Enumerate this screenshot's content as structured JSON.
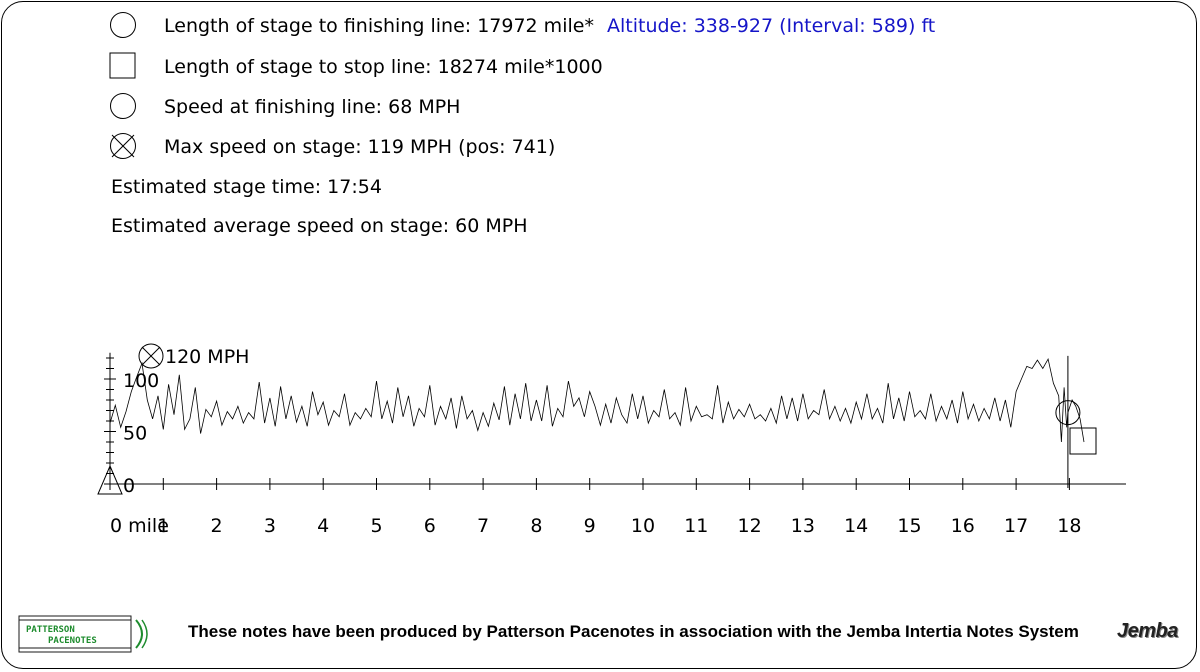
{
  "legend": {
    "finish_length": "Length of stage to finishing line: 17972 mile*",
    "stop_length": "Length of stage to stop line: 18274 mile*1000",
    "finish_speed": "Speed at finishing line: 68 MPH",
    "max_speed": "Max speed on stage: 119 MPH (pos: 741)"
  },
  "altitude": "Altitude: 338-927 (Interval: 589) ft",
  "stats": {
    "stage_time": "Estimated stage time: 17:54",
    "avg_speed": "Estimated average speed on stage: 60 MPH"
  },
  "footer": {
    "text": "These notes have been produced by Patterson Pacenotes in association with the Jemba Intertia Notes System",
    "logo_text_top": "PATTERSON",
    "logo_text_bottom": "PACENOTES",
    "brand": "Jemba"
  },
  "colors": {
    "altitude": "#1515c8",
    "line": "#000000"
  },
  "chart_data": {
    "type": "line",
    "title": "",
    "xlabel": "",
    "ylabel": "",
    "x_unit": "mile",
    "y_unit": "MPH",
    "xlim": [
      0,
      18.274
    ],
    "ylim": [
      0,
      120
    ],
    "yticks": [
      "0",
      "50",
      "100"
    ],
    "xticks": [
      "0 mile",
      "1",
      "2",
      "3",
      "4",
      "5",
      "6",
      "7",
      "8",
      "9",
      "10",
      "11",
      "12",
      "13",
      "14",
      "15",
      "16",
      "17",
      "18"
    ],
    "max_label": "120 MPH",
    "finish_x": 17.972,
    "finish_speed": 68,
    "stop_x": 18.274,
    "max_speed": 119,
    "series": [
      {
        "values": [
          [
            0.0,
            58
          ],
          [
            0.1,
            75
          ],
          [
            0.2,
            54
          ],
          [
            0.3,
            69
          ],
          [
            0.4,
            88
          ],
          [
            0.5,
            102
          ],
          [
            0.6,
            115
          ],
          [
            0.7,
            80
          ],
          [
            0.8,
            62
          ],
          [
            0.9,
            84
          ],
          [
            1.0,
            52
          ],
          [
            1.1,
            95
          ],
          [
            1.2,
            66
          ],
          [
            1.3,
            104
          ],
          [
            1.4,
            52
          ],
          [
            1.5,
            62
          ],
          [
            1.6,
            92
          ],
          [
            1.7,
            48
          ],
          [
            1.8,
            71
          ],
          [
            1.9,
            64
          ],
          [
            2.0,
            79
          ],
          [
            2.1,
            56
          ],
          [
            2.2,
            69
          ],
          [
            2.3,
            62
          ],
          [
            2.4,
            74
          ],
          [
            2.5,
            58
          ],
          [
            2.6,
            68
          ],
          [
            2.7,
            62
          ],
          [
            2.8,
            97
          ],
          [
            2.9,
            58
          ],
          [
            3.0,
            82
          ],
          [
            3.1,
            55
          ],
          [
            3.2,
            93
          ],
          [
            3.3,
            62
          ],
          [
            3.4,
            84
          ],
          [
            3.5,
            59
          ],
          [
            3.6,
            74
          ],
          [
            3.7,
            55
          ],
          [
            3.8,
            88
          ],
          [
            3.9,
            66
          ],
          [
            4.0,
            78
          ],
          [
            4.1,
            56
          ],
          [
            4.2,
            70
          ],
          [
            4.3,
            64
          ],
          [
            4.4,
            86
          ],
          [
            4.5,
            56
          ],
          [
            4.6,
            68
          ],
          [
            4.7,
            62
          ],
          [
            4.8,
            72
          ],
          [
            4.9,
            64
          ],
          [
            5.0,
            98
          ],
          [
            5.1,
            62
          ],
          [
            5.2,
            79
          ],
          [
            5.3,
            58
          ],
          [
            5.4,
            92
          ],
          [
            5.5,
            64
          ],
          [
            5.6,
            84
          ],
          [
            5.7,
            55
          ],
          [
            5.8,
            72
          ],
          [
            5.9,
            64
          ],
          [
            6.0,
            94
          ],
          [
            6.1,
            56
          ],
          [
            6.2,
            74
          ],
          [
            6.3,
            62
          ],
          [
            6.4,
            82
          ],
          [
            6.5,
            53
          ],
          [
            6.6,
            84
          ],
          [
            6.7,
            62
          ],
          [
            6.8,
            70
          ],
          [
            6.9,
            51
          ],
          [
            7.0,
            68
          ],
          [
            7.1,
            55
          ],
          [
            7.2,
            77
          ],
          [
            7.3,
            61
          ],
          [
            7.4,
            93
          ],
          [
            7.5,
            56
          ],
          [
            7.6,
            86
          ],
          [
            7.7,
            62
          ],
          [
            7.8,
            96
          ],
          [
            7.9,
            60
          ],
          [
            8.0,
            80
          ],
          [
            8.1,
            60
          ],
          [
            8.2,
            94
          ],
          [
            8.3,
            55
          ],
          [
            8.4,
            72
          ],
          [
            8.5,
            64
          ],
          [
            8.6,
            98
          ],
          [
            8.7,
            74
          ],
          [
            8.8,
            82
          ],
          [
            8.9,
            64
          ],
          [
            9.0,
            88
          ],
          [
            9.1,
            74
          ],
          [
            9.2,
            56
          ],
          [
            9.3,
            76
          ],
          [
            9.4,
            58
          ],
          [
            9.5,
            82
          ],
          [
            9.6,
            66
          ],
          [
            9.7,
            58
          ],
          [
            9.8,
            86
          ],
          [
            9.9,
            62
          ],
          [
            10.0,
            84
          ],
          [
            10.1,
            58
          ],
          [
            10.2,
            70
          ],
          [
            10.3,
            64
          ],
          [
            10.4,
            90
          ],
          [
            10.5,
            62
          ],
          [
            10.6,
            68
          ],
          [
            10.7,
            56
          ],
          [
            10.8,
            92
          ],
          [
            10.9,
            60
          ],
          [
            11.0,
            74
          ],
          [
            11.1,
            64
          ],
          [
            11.2,
            66
          ],
          [
            11.3,
            62
          ],
          [
            11.4,
            94
          ],
          [
            11.5,
            58
          ],
          [
            11.6,
            78
          ],
          [
            11.7,
            62
          ],
          [
            11.8,
            71
          ],
          [
            11.9,
            64
          ],
          [
            12.0,
            76
          ],
          [
            12.1,
            62
          ],
          [
            12.2,
            66
          ],
          [
            12.3,
            60
          ],
          [
            12.4,
            72
          ],
          [
            12.5,
            58
          ],
          [
            12.6,
            84
          ],
          [
            12.7,
            62
          ],
          [
            12.8,
            82
          ],
          [
            12.9,
            60
          ],
          [
            13.0,
            86
          ],
          [
            13.1,
            62
          ],
          [
            13.2,
            70
          ],
          [
            13.3,
            66
          ],
          [
            13.4,
            90
          ],
          [
            13.5,
            62
          ],
          [
            13.6,
            74
          ],
          [
            13.7,
            60
          ],
          [
            13.8,
            72
          ],
          [
            13.9,
            58
          ],
          [
            14.0,
            78
          ],
          [
            14.1,
            62
          ],
          [
            14.2,
            86
          ],
          [
            14.3,
            62
          ],
          [
            14.4,
            72
          ],
          [
            14.5,
            58
          ],
          [
            14.6,
            96
          ],
          [
            14.7,
            62
          ],
          [
            14.8,
            82
          ],
          [
            14.9,
            60
          ],
          [
            15.0,
            88
          ],
          [
            15.1,
            64
          ],
          [
            15.2,
            70
          ],
          [
            15.3,
            62
          ],
          [
            15.4,
            86
          ],
          [
            15.5,
            60
          ],
          [
            15.6,
            74
          ],
          [
            15.7,
            62
          ],
          [
            15.8,
            80
          ],
          [
            15.9,
            58
          ],
          [
            16.0,
            88
          ],
          [
            16.1,
            62
          ],
          [
            16.2,
            76
          ],
          [
            16.3,
            60
          ],
          [
            16.4,
            72
          ],
          [
            16.5,
            62
          ],
          [
            16.6,
            82
          ],
          [
            16.7,
            60
          ],
          [
            16.8,
            80
          ],
          [
            16.9,
            54
          ],
          [
            17.0,
            88
          ],
          [
            17.1,
            100
          ],
          [
            17.2,
            112
          ],
          [
            17.3,
            110
          ],
          [
            17.4,
            118
          ],
          [
            17.5,
            110
          ],
          [
            17.6,
            119
          ],
          [
            17.7,
            96
          ],
          [
            17.8,
            84
          ],
          [
            17.85,
            40
          ],
          [
            17.9,
            92
          ],
          [
            17.95,
            54
          ],
          [
            17.972,
            68
          ],
          [
            18.05,
            80
          ],
          [
            18.12,
            74
          ],
          [
            18.2,
            62
          ],
          [
            18.274,
            40
          ]
        ]
      }
    ]
  }
}
